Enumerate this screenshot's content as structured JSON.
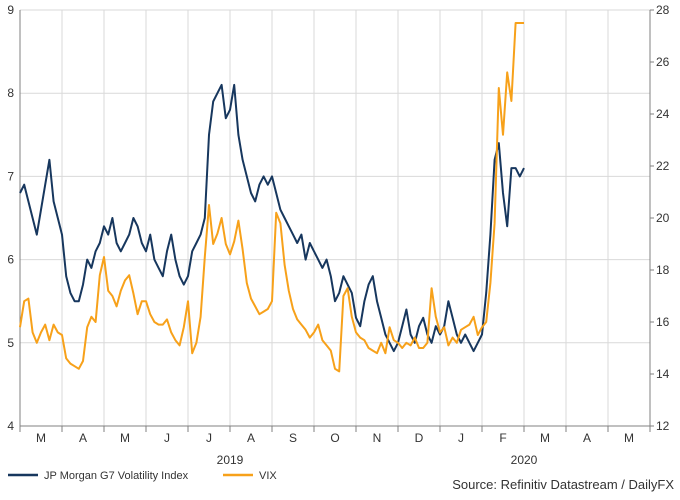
{
  "chart_data": {
    "type": "line",
    "title": "",
    "source": "Source: Refinitiv Datastream / DailyFX",
    "x_month_labels": [
      "M",
      "A",
      "M",
      "J",
      "J",
      "A",
      "S",
      "O",
      "N",
      "D",
      "J",
      "F",
      "M",
      "A",
      "M"
    ],
    "x_year_labels": [
      "2019",
      "2020"
    ],
    "y_left": {
      "ylim": [
        4,
        9
      ],
      "ticks": [
        4,
        5,
        6,
        7,
        8,
        9
      ]
    },
    "y_right": {
      "ylim": [
        12,
        28
      ],
      "ticks": [
        12,
        14,
        16,
        18,
        20,
        22,
        24,
        26,
        28
      ]
    },
    "grid": true,
    "legend_position": "bottom-left",
    "series": [
      {
        "name": "JP Morgan G7 Volatility Index",
        "axis": "left",
        "color": "#17375e",
        "x": [
          0,
          0.1,
          0.2,
          0.3,
          0.4,
          0.5,
          0.6,
          0.7,
          0.8,
          0.9,
          1.0,
          1.1,
          1.2,
          1.3,
          1.4,
          1.5,
          1.6,
          1.7,
          1.8,
          1.9,
          2.0,
          2.1,
          2.2,
          2.3,
          2.4,
          2.5,
          2.6,
          2.7,
          2.8,
          2.9,
          3.0,
          3.1,
          3.2,
          3.3,
          3.4,
          3.5,
          3.6,
          3.7,
          3.8,
          3.9,
          4.0,
          4.1,
          4.2,
          4.3,
          4.4,
          4.5,
          4.6,
          4.7,
          4.8,
          4.9,
          5.0,
          5.1,
          5.2,
          5.3,
          5.4,
          5.5,
          5.6,
          5.7,
          5.8,
          5.9,
          6.0,
          6.1,
          6.2,
          6.3,
          6.4,
          6.5,
          6.6,
          6.7,
          6.8,
          6.9,
          7.0,
          7.1,
          7.2,
          7.3,
          7.4,
          7.5,
          7.6,
          7.7,
          7.8,
          7.9,
          8.0,
          8.1,
          8.2,
          8.3,
          8.4,
          8.5,
          8.6,
          8.7,
          8.8,
          8.9,
          9.0,
          9.1,
          9.2,
          9.3,
          9.4,
          9.5,
          9.6,
          9.7,
          9.8,
          9.9,
          10.0,
          10.1,
          10.2,
          10.3,
          10.4,
          10.5,
          10.6,
          10.7,
          10.8,
          10.9,
          11.0,
          11.1,
          11.2,
          11.3,
          11.4,
          11.5,
          11.6,
          11.7,
          11.8,
          11.9,
          12.0
        ],
        "values": [
          6.8,
          6.9,
          6.7,
          6.5,
          6.3,
          6.6,
          6.9,
          7.2,
          6.7,
          6.5,
          6.3,
          5.8,
          5.6,
          5.5,
          5.5,
          5.7,
          6.0,
          5.9,
          6.1,
          6.2,
          6.4,
          6.3,
          6.5,
          6.2,
          6.1,
          6.2,
          6.3,
          6.5,
          6.4,
          6.2,
          6.1,
          6.3,
          6.0,
          5.9,
          5.8,
          6.1,
          6.3,
          6.0,
          5.8,
          5.7,
          5.8,
          6.1,
          6.2,
          6.3,
          6.5,
          7.5,
          7.9,
          8.0,
          8.1,
          7.7,
          7.8,
          8.1,
          7.5,
          7.2,
          7.0,
          6.8,
          6.7,
          6.9,
          7.0,
          6.9,
          7.0,
          6.8,
          6.6,
          6.5,
          6.4,
          6.3,
          6.2,
          6.3,
          6.0,
          6.2,
          6.1,
          6.0,
          5.9,
          6.0,
          5.8,
          5.5,
          5.6,
          5.8,
          5.7,
          5.6,
          5.3,
          5.2,
          5.5,
          5.7,
          5.8,
          5.5,
          5.3,
          5.1,
          5.0,
          4.9,
          5.0,
          5.2,
          5.4,
          5.1,
          5.0,
          5.2,
          5.3,
          5.1,
          5.0,
          5.2,
          5.1,
          5.2,
          5.5,
          5.3,
          5.1,
          5.0,
          5.1,
          5.0,
          4.9,
          5.0,
          5.1,
          5.6,
          6.3,
          7.2,
          7.4,
          6.8,
          6.4,
          7.1,
          7.1,
          7.0,
          7.1
        ],
        "x_month_index_note": ""
      },
      {
        "name": "VIX",
        "axis": "right",
        "color": "#f7a11a",
        "x": [
          0,
          0.1,
          0.2,
          0.3,
          0.4,
          0.5,
          0.6,
          0.7,
          0.8,
          0.9,
          1.0,
          1.1,
          1.2,
          1.3,
          1.4,
          1.5,
          1.6,
          1.7,
          1.8,
          1.9,
          2.0,
          2.1,
          2.2,
          2.3,
          2.4,
          2.5,
          2.6,
          2.7,
          2.8,
          2.9,
          3.0,
          3.1,
          3.2,
          3.3,
          3.4,
          3.5,
          3.6,
          3.7,
          3.8,
          3.9,
          4.0,
          4.1,
          4.2,
          4.3,
          4.4,
          4.5,
          4.6,
          4.7,
          4.8,
          4.9,
          5.0,
          5.1,
          5.2,
          5.3,
          5.4,
          5.5,
          5.6,
          5.7,
          5.8,
          5.9,
          6.0,
          6.1,
          6.2,
          6.3,
          6.4,
          6.5,
          6.6,
          6.7,
          6.8,
          6.9,
          7.0,
          7.1,
          7.2,
          7.3,
          7.4,
          7.5,
          7.6,
          7.7,
          7.8,
          7.9,
          8.0,
          8.1,
          8.2,
          8.3,
          8.4,
          8.5,
          8.6,
          8.7,
          8.8,
          8.9,
          9.0,
          9.1,
          9.2,
          9.3,
          9.4,
          9.5,
          9.6,
          9.7,
          9.8,
          9.9,
          10.0,
          10.1,
          10.2,
          10.3,
          10.4,
          10.5,
          10.6,
          10.7,
          10.8,
          10.9,
          11.0,
          11.1,
          11.2,
          11.3,
          11.4,
          11.5,
          11.6,
          11.7,
          11.8,
          11.9,
          12.0
        ],
        "values": [
          15.8,
          16.8,
          16.9,
          15.6,
          15.2,
          15.6,
          15.9,
          15.3,
          15.9,
          15.6,
          15.5,
          14.6,
          14.4,
          14.3,
          14.2,
          14.5,
          15.8,
          16.2,
          16.0,
          17.8,
          18.5,
          17.2,
          17.0,
          16.6,
          17.2,
          17.6,
          17.8,
          17.1,
          16.3,
          16.8,
          16.8,
          16.3,
          16.0,
          15.9,
          15.9,
          16.1,
          15.6,
          15.3,
          15.1,
          15.8,
          16.8,
          14.8,
          15.2,
          16.2,
          18.5,
          20.5,
          19.0,
          19.4,
          20.0,
          19.0,
          18.6,
          19.1,
          19.9,
          18.8,
          17.5,
          16.9,
          16.6,
          16.3,
          16.4,
          16.5,
          16.8,
          20.2,
          19.8,
          18.2,
          17.2,
          16.5,
          16.1,
          15.9,
          15.7,
          15.4,
          15.6,
          15.9,
          15.3,
          15.1,
          14.9,
          14.2,
          14.1,
          17.0,
          17.3,
          16.2,
          15.6,
          15.4,
          15.3,
          15.0,
          14.9,
          14.8,
          15.2,
          14.8,
          15.8,
          15.3,
          15.2,
          15.0,
          15.2,
          15.1,
          15.4,
          15.0,
          15.0,
          15.2,
          17.3,
          16.2,
          15.6,
          15.8,
          15.1,
          15.4,
          15.2,
          15.7,
          15.8,
          15.9,
          16.2,
          15.5,
          15.8,
          16.0,
          17.5,
          19.8,
          25.0,
          23.2,
          25.6,
          24.5,
          27.5,
          27.5,
          27.5
        ],
        "x_month_index_note": ""
      }
    ]
  }
}
